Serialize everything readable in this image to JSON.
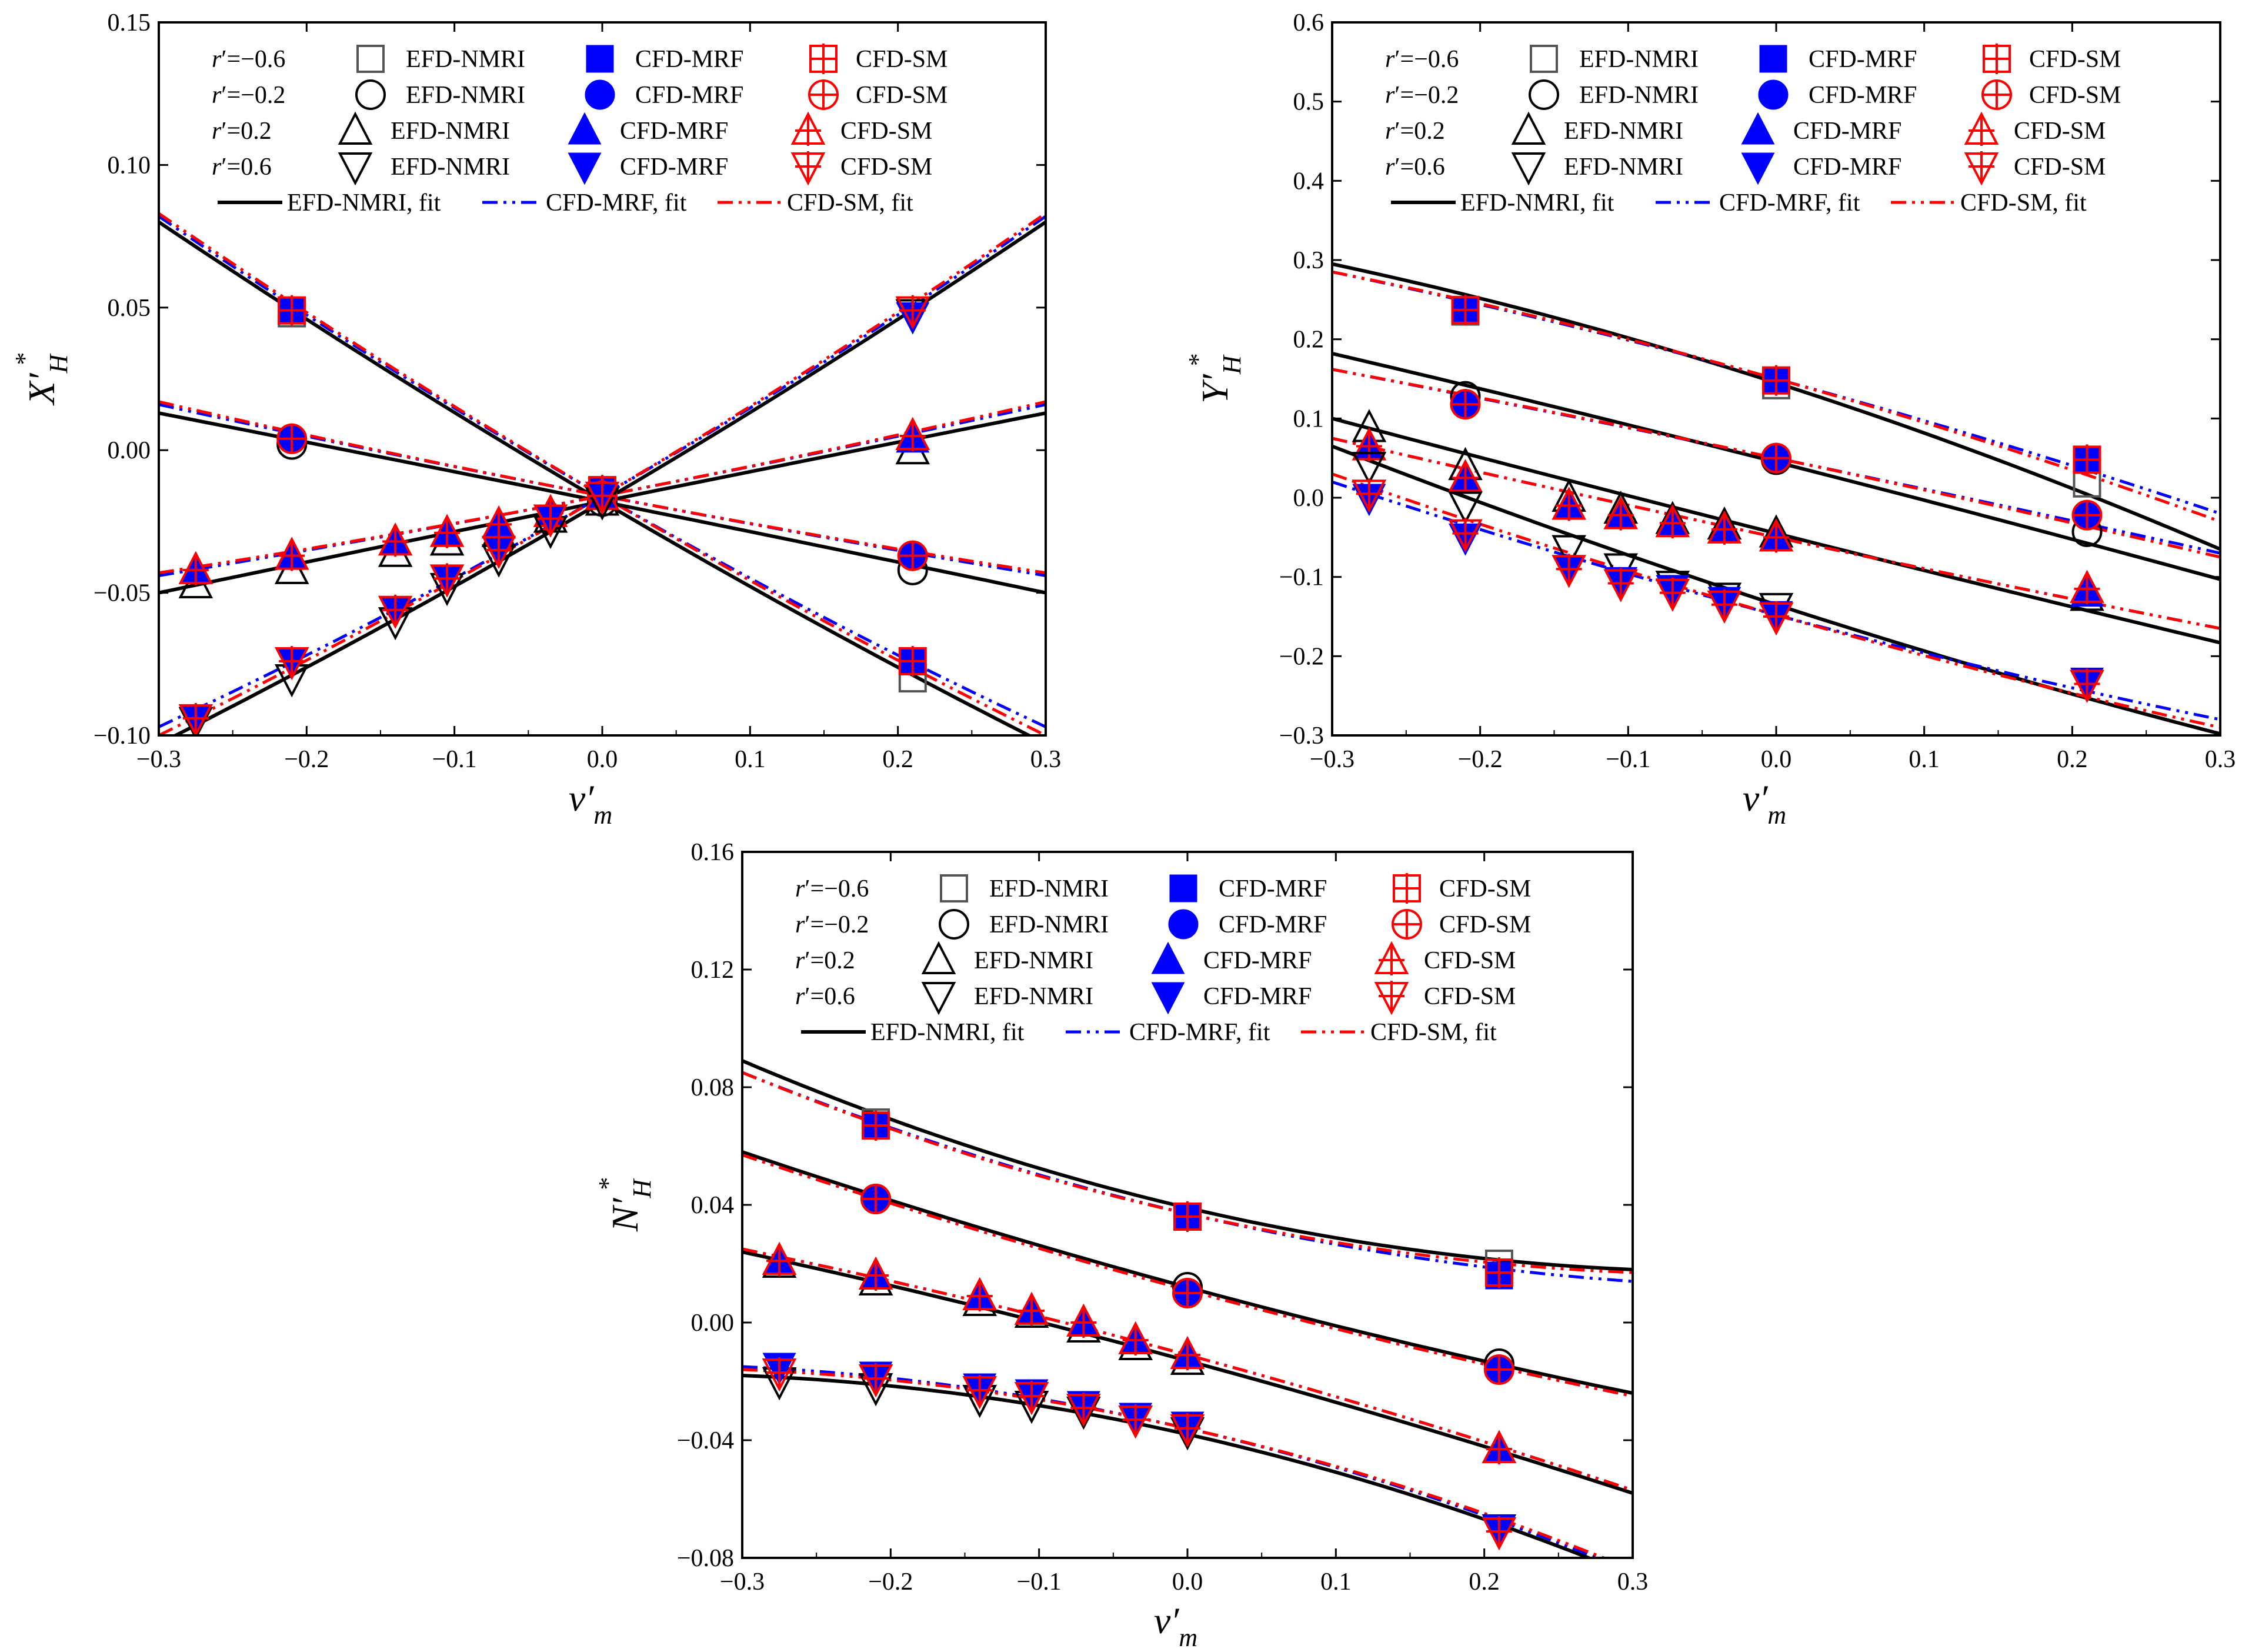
{
  "colors": {
    "efd": "#000000",
    "efd_marker": "#555555",
    "mrf": "#0000ff",
    "sm": "#ff0000"
  },
  "legend": {
    "r_labels": [
      "r′=−0.6",
      "r′=−0.2",
      "r′=0.2",
      "r′=0.6"
    ],
    "r_prefix": "r",
    "r_values": [
      "′=−0.6",
      "′=−0.2",
      "′=0.2",
      "′=0.6"
    ],
    "efd": "EFD-NMRI",
    "mrf": "CFD-MRF",
    "sm": "CFD-SM",
    "efd_fit": "EFD-NMRI, fit",
    "mrf_fit": "CFD-MRF, fit",
    "sm_fit": "CFD-SM, fit"
  },
  "chart_data": [
    {
      "type": "scatter",
      "id": "X",
      "ylabel_main": "X′",
      "ylabel_sub": "H",
      "ylabel_sup": "*",
      "xlabel_main": "v′",
      "xlabel_sub": "m",
      "xlim": [
        -0.3,
        0.3
      ],
      "ylim": [
        -0.1,
        0.15
      ],
      "xticks": [
        -0.3,
        -0.2,
        -0.1,
        0.0,
        0.1,
        0.2,
        0.3
      ],
      "xtick_labels": [
        "−0.3",
        "−0.2",
        "−0.1",
        "0.0",
        "0.1",
        "0.2",
        "0.3"
      ],
      "yticks": [
        -0.1,
        -0.05,
        0.0,
        0.05,
        0.1,
        0.15
      ],
      "ytick_labels": [
        "−0.10",
        "−0.05",
        "0.00",
        "0.05",
        "0.10",
        "0.15"
      ],
      "series": [
        {
          "r": -0.6,
          "x": [
            -0.21,
            0.0,
            0.21
          ],
          "efd": [
            0.048,
            -0.016,
            -0.08
          ],
          "mrf": [
            0.049,
            -0.014,
            -0.074
          ],
          "sm": [
            0.049,
            -0.014,
            -0.074
          ],
          "fit_efd": [
            0.08,
            -0.018,
            -0.103
          ],
          "fit_mrf": [
            0.082,
            -0.016,
            -0.097
          ],
          "fit_sm": [
            0.083,
            -0.016,
            -0.1
          ]
        },
        {
          "r": -0.2,
          "x": [
            -0.21,
            0.0,
            0.21
          ],
          "efd": [
            0.002,
            -0.018,
            -0.042
          ],
          "mrf": [
            0.004,
            -0.016,
            -0.037
          ],
          "sm": [
            0.004,
            -0.016,
            -0.037
          ],
          "fit_efd": [
            0.013,
            -0.018,
            -0.05
          ],
          "fit_mrf": [
            0.016,
            -0.016,
            -0.044
          ],
          "fit_sm": [
            0.017,
            -0.016,
            -0.043
          ]
        },
        {
          "r": 0.2,
          "x": [
            -0.275,
            -0.21,
            -0.14,
            -0.105,
            -0.07,
            -0.035,
            0.0,
            0.21
          ],
          "efd": [
            -0.047,
            -0.042,
            -0.036,
            -0.032,
            -0.029,
            -0.024,
            -0.018,
            0.0
          ],
          "mrf": [
            -0.042,
            -0.037,
            -0.032,
            -0.029,
            -0.026,
            -0.022,
            -0.016,
            0.004
          ],
          "sm": [
            -0.042,
            -0.037,
            -0.032,
            -0.029,
            -0.026,
            -0.022,
            -0.016,
            0.005
          ],
          "fit_efd": [
            -0.05,
            -0.018,
            0.013
          ],
          "fit_mrf": [
            -0.044,
            -0.016,
            0.016
          ],
          "fit_sm": [
            -0.043,
            -0.016,
            0.017
          ]
        },
        {
          "r": 0.6,
          "x": [
            -0.275,
            -0.21,
            -0.14,
            -0.105,
            -0.07,
            -0.035,
            0.0,
            0.21
          ],
          "efd": [
            -0.095,
            -0.08,
            -0.06,
            -0.048,
            -0.038,
            -0.028,
            -0.018,
            0.048
          ],
          "mrf": [
            -0.094,
            -0.074,
            -0.056,
            -0.045,
            -0.035,
            -0.024,
            -0.016,
            0.047
          ],
          "sm": [
            -0.094,
            -0.074,
            -0.056,
            -0.045,
            -0.035,
            -0.024,
            -0.016,
            0.049
          ],
          "fit_efd": [
            -0.103,
            -0.018,
            0.08
          ],
          "fit_mrf": [
            -0.097,
            -0.016,
            0.082
          ],
          "fit_sm": [
            -0.1,
            -0.016,
            0.083
          ]
        }
      ]
    },
    {
      "type": "scatter",
      "id": "Y",
      "ylabel_main": "Y′",
      "ylabel_sub": "H",
      "ylabel_sup": "*",
      "xlabel_main": "v′",
      "xlabel_sub": "m",
      "xlim": [
        -0.3,
        0.3
      ],
      "ylim": [
        -0.3,
        0.6
      ],
      "xticks": [
        -0.3,
        -0.2,
        -0.1,
        0.0,
        0.1,
        0.2,
        0.3
      ],
      "xtick_labels": [
        "−0.3",
        "−0.2",
        "−0.1",
        "0.0",
        "0.1",
        "0.2",
        "0.3"
      ],
      "yticks": [
        -0.3,
        -0.2,
        -0.1,
        0.0,
        0.1,
        0.2,
        0.3,
        0.4,
        0.5,
        0.6
      ],
      "ytick_labels": [
        "−0.3",
        "−0.2",
        "−0.1",
        "0.0",
        "0.1",
        "0.2",
        "0.3",
        "0.4",
        "0.5",
        "0.6"
      ],
      "series": [
        {
          "r": -0.6,
          "x": [
            -0.21,
            0.0,
            0.21
          ],
          "efd": [
            0.235,
            0.142,
            0.018
          ],
          "mrf": [
            0.237,
            0.148,
            0.048
          ],
          "sm": [
            0.237,
            0.148,
            0.048
          ],
          "fit_efd": [
            0.295,
            0.145,
            -0.065
          ],
          "fit_mrf": [
            0.285,
            0.15,
            -0.02
          ],
          "fit_sm": [
            0.285,
            0.15,
            -0.03
          ]
        },
        {
          "r": -0.2,
          "x": [
            -0.21,
            0.0,
            0.21
          ],
          "efd": [
            0.128,
            0.048,
            -0.043
          ],
          "mrf": [
            0.118,
            0.05,
            -0.022
          ],
          "sm": [
            0.118,
            0.05,
            -0.022
          ],
          "fit_efd": [
            0.182,
            0.045,
            -0.103
          ],
          "fit_mrf": [
            0.162,
            0.05,
            -0.07
          ],
          "fit_sm": [
            0.162,
            0.05,
            -0.075
          ]
        },
        {
          "r": 0.2,
          "x": [
            -0.275,
            -0.21,
            -0.14,
            -0.105,
            -0.07,
            -0.035,
            0.0,
            0.21
          ],
          "efd": [
            0.088,
            0.04,
            0.0,
            -0.015,
            -0.028,
            -0.035,
            -0.045,
            -0.125
          ],
          "mrf": [
            0.065,
            0.025,
            -0.01,
            -0.022,
            -0.032,
            -0.04,
            -0.05,
            -0.12
          ],
          "sm": [
            0.065,
            0.025,
            -0.01,
            -0.022,
            -0.032,
            -0.04,
            -0.05,
            -0.115
          ],
          "fit_efd": [
            0.1,
            -0.045,
            -0.183
          ],
          "fit_mrf": [
            0.075,
            -0.05,
            -0.165
          ],
          "fit_sm": [
            0.075,
            -0.05,
            -0.165
          ]
        },
        {
          "r": 0.6,
          "x": [
            -0.275,
            -0.21,
            -0.14,
            -0.105,
            -0.07,
            -0.035,
            0.0,
            0.21
          ],
          "efd": [
            0.04,
            -0.01,
            -0.065,
            -0.088,
            -0.11,
            -0.125,
            -0.138,
            -0.235
          ],
          "mrf": [
            0.0,
            -0.05,
            -0.09,
            -0.105,
            -0.115,
            -0.13,
            -0.148,
            -0.232
          ],
          "sm": [
            0.005,
            -0.045,
            -0.09,
            -0.108,
            -0.12,
            -0.135,
            -0.15,
            -0.235
          ],
          "fit_efd": [
            0.065,
            -0.135,
            -0.298
          ],
          "fit_mrf": [
            0.02,
            -0.148,
            -0.28
          ],
          "fit_sm": [
            0.03,
            -0.148,
            -0.29
          ]
        }
      ]
    },
    {
      "type": "scatter",
      "id": "N",
      "ylabel_main": "N′",
      "ylabel_sub": "H",
      "ylabel_sup": "*",
      "xlabel_main": "v′",
      "xlabel_sub": "m",
      "xlim": [
        -0.3,
        0.3
      ],
      "ylim": [
        -0.08,
        0.16
      ],
      "xticks": [
        -0.3,
        -0.2,
        -0.1,
        0.0,
        0.1,
        0.2,
        0.3
      ],
      "xtick_labels": [
        "−0.3",
        "−0.2",
        "−0.1",
        "0.0",
        "0.1",
        "0.2",
        "0.3"
      ],
      "yticks": [
        -0.08,
        -0.04,
        0.0,
        0.04,
        0.08,
        0.12,
        0.16
      ],
      "ytick_labels": [
        "−0.08",
        "−0.04",
        "0.00",
        "0.04",
        "0.08",
        "0.12",
        "0.16"
      ],
      "series": [
        {
          "r": -0.6,
          "x": [
            -0.21,
            0.0,
            0.21
          ],
          "efd": [
            0.068,
            0.036,
            0.02
          ],
          "mrf": [
            0.067,
            0.036,
            0.016
          ],
          "sm": [
            0.067,
            0.036,
            0.017
          ],
          "fit_efd": [
            0.089,
            0.039,
            0.018
          ],
          "fit_mrf": [
            0.085,
            0.037,
            0.014
          ],
          "fit_sm": [
            0.085,
            0.037,
            0.017
          ]
        },
        {
          "r": -0.2,
          "x": [
            -0.21,
            0.0,
            0.21
          ],
          "efd": [
            0.042,
            0.012,
            -0.014
          ],
          "mrf": [
            0.042,
            0.01,
            -0.016
          ],
          "sm": [
            0.042,
            0.01,
            -0.016
          ],
          "fit_efd": [
            0.058,
            0.012,
            -0.024
          ],
          "fit_mrf": [
            0.057,
            0.011,
            -0.025
          ],
          "fit_sm": [
            0.057,
            0.011,
            -0.025
          ]
        },
        {
          "r": 0.2,
          "x": [
            -0.275,
            -0.21,
            -0.14,
            -0.105,
            -0.07,
            -0.035,
            0.0,
            0.21
          ],
          "efd": [
            0.02,
            0.014,
            0.007,
            0.003,
            -0.002,
            -0.008,
            -0.013,
            -0.043
          ],
          "mrf": [
            0.021,
            0.016,
            0.009,
            0.004,
            0.0,
            -0.006,
            -0.011,
            -0.043
          ],
          "sm": [
            0.021,
            0.016,
            0.009,
            0.004,
            0.0,
            -0.006,
            -0.011,
            -0.043
          ],
          "fit_efd": [
            0.024,
            -0.013,
            -0.058
          ],
          "fit_mrf": [
            0.025,
            -0.011,
            -0.057
          ],
          "fit_sm": [
            0.025,
            -0.011,
            -0.057
          ]
        },
        {
          "r": 0.6,
          "x": [
            -0.275,
            -0.21,
            -0.14,
            -0.105,
            -0.07,
            -0.035,
            0.0,
            0.21
          ],
          "efd": [
            -0.02,
            -0.022,
            -0.026,
            -0.028,
            -0.03,
            -0.033,
            -0.037,
            -0.07
          ],
          "mrf": [
            -0.015,
            -0.018,
            -0.022,
            -0.024,
            -0.028,
            -0.032,
            -0.035,
            -0.07
          ],
          "sm": [
            -0.017,
            -0.019,
            -0.023,
            -0.025,
            -0.029,
            -0.033,
            -0.036,
            -0.071
          ],
          "fit_efd": [
            -0.018,
            -0.038,
            -0.086
          ],
          "fit_mrf": [
            -0.015,
            -0.036,
            -0.085
          ],
          "fit_sm": [
            -0.016,
            -0.036,
            -0.084
          ]
        }
      ]
    }
  ]
}
